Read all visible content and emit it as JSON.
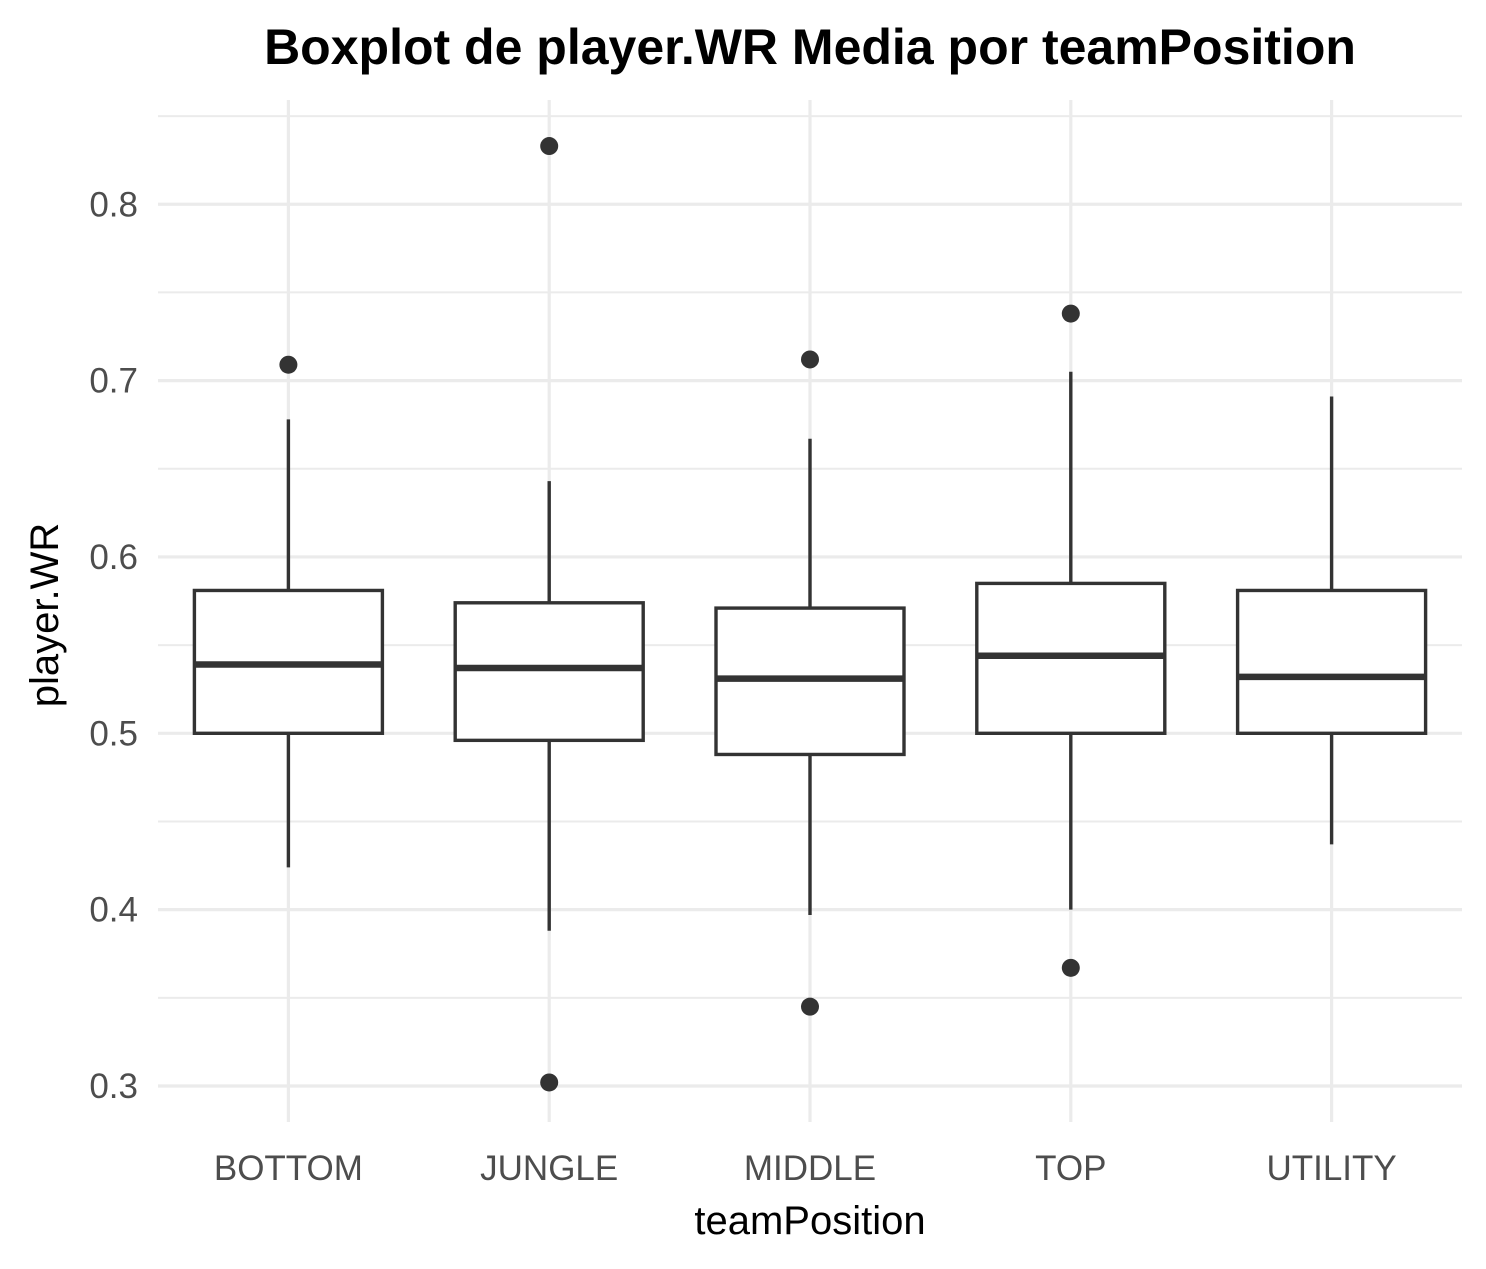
{
  "chart_data": {
    "type": "boxplot",
    "title": "Boxplot de player.WR Media por teamPosition",
    "xlabel": "teamPosition",
    "ylabel": "player.WR",
    "ylim": [
      0.28,
      0.855
    ],
    "y_ticks": [
      0.3,
      0.4,
      0.5,
      0.6,
      0.7,
      0.8
    ],
    "y_tick_labels": [
      "0.3",
      "0.4",
      "0.5",
      "0.6",
      "0.7",
      "0.8"
    ],
    "grid": true,
    "legend": "none",
    "colors": {
      "box_outline": "#333333",
      "box_fill": "#ffffff",
      "grid": "#ebebeb",
      "tick_text": "#4d4d4d"
    },
    "categories": [
      "BOTTOM",
      "JUNGLE",
      "MIDDLE",
      "TOP",
      "UTILITY"
    ],
    "boxes": [
      {
        "category": "BOTTOM",
        "whisker_low": 0.424,
        "q1": 0.5,
        "median": 0.539,
        "q3": 0.581,
        "whisker_high": 0.678,
        "outliers": [
          0.709
        ]
      },
      {
        "category": "JUNGLE",
        "whisker_low": 0.388,
        "q1": 0.496,
        "median": 0.537,
        "q3": 0.574,
        "whisker_high": 0.643,
        "outliers": [
          0.833,
          0.302
        ]
      },
      {
        "category": "MIDDLE",
        "whisker_low": 0.397,
        "q1": 0.488,
        "median": 0.531,
        "q3": 0.571,
        "whisker_high": 0.667,
        "outliers": [
          0.712,
          0.345
        ]
      },
      {
        "category": "TOP",
        "whisker_low": 0.4,
        "q1": 0.5,
        "median": 0.544,
        "q3": 0.585,
        "whisker_high": 0.705,
        "outliers": [
          0.738,
          0.367
        ]
      },
      {
        "category": "UTILITY",
        "whisker_low": 0.437,
        "q1": 0.5,
        "median": 0.532,
        "q3": 0.581,
        "whisker_high": 0.691,
        "outliers": []
      }
    ]
  }
}
